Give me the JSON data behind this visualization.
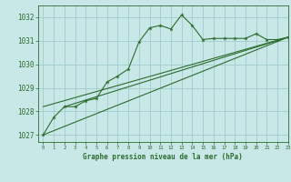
{
  "title": "Graphe pression niveau de la mer (hPa)",
  "xlim": [
    -0.5,
    23
  ],
  "ylim": [
    1026.7,
    1032.5
  ],
  "yticks": [
    1027,
    1028,
    1029,
    1030,
    1031,
    1032
  ],
  "xticks": [
    0,
    1,
    2,
    3,
    4,
    5,
    6,
    7,
    8,
    9,
    10,
    11,
    12,
    13,
    14,
    15,
    16,
    17,
    18,
    19,
    20,
    21,
    22,
    23
  ],
  "background_color": "#c8e8e8",
  "grid_color": "#a0cccc",
  "line_color": "#2d6b2d",
  "main_line": [
    [
      0,
      1027.0
    ],
    [
      1,
      1027.75
    ],
    [
      2,
      1028.2
    ],
    [
      3,
      1028.2
    ],
    [
      4,
      1028.45
    ],
    [
      5,
      1028.55
    ],
    [
      6,
      1029.25
    ],
    [
      7,
      1029.5
    ],
    [
      8,
      1029.8
    ],
    [
      9,
      1030.95
    ],
    [
      10,
      1031.55
    ],
    [
      11,
      1031.65
    ],
    [
      12,
      1031.5
    ],
    [
      13,
      1032.1
    ],
    [
      14,
      1031.65
    ],
    [
      15,
      1031.05
    ],
    [
      16,
      1031.1
    ],
    [
      17,
      1031.1
    ],
    [
      18,
      1031.1
    ],
    [
      19,
      1031.1
    ],
    [
      20,
      1031.3
    ],
    [
      21,
      1031.05
    ],
    [
      22,
      1031.05
    ],
    [
      23,
      1031.15
    ]
  ],
  "trend_line1": [
    [
      0,
      1027.0
    ],
    [
      23,
      1031.15
    ]
  ],
  "trend_line2": [
    [
      0,
      1028.2
    ],
    [
      23,
      1031.15
    ]
  ],
  "trend_line3": [
    [
      2,
      1028.2
    ],
    [
      23,
      1031.15
    ]
  ]
}
